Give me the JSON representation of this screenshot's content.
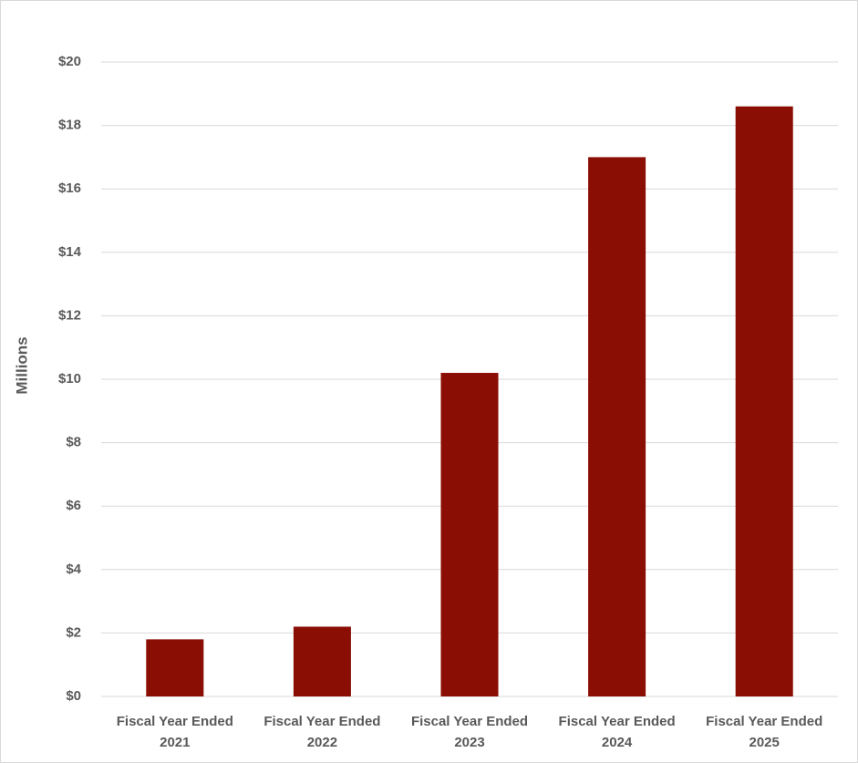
{
  "chart_data": {
    "type": "bar",
    "y_label": "Millions",
    "categories": [
      "Fiscal Year Ended 2021",
      "Fiscal Year Ended 2022",
      "Fiscal Year Ended 2023",
      "Fiscal Year Ended 2024",
      "Fiscal Year Ended 2025"
    ],
    "values": [
      1.8,
      2.2,
      10.2,
      17.0,
      18.6
    ],
    "color": "#8b0e04",
    "ylim": [
      0,
      20
    ],
    "yticks": [
      {
        "value": 0,
        "label": "$0"
      },
      {
        "value": 2,
        "label": "$2"
      },
      {
        "value": 4,
        "label": "$4"
      },
      {
        "value": 6,
        "label": "$6"
      },
      {
        "value": 8,
        "label": "$8"
      },
      {
        "value": 10,
        "label": "$10"
      },
      {
        "value": 12,
        "label": "$12"
      },
      {
        "value": 14,
        "label": "$14"
      },
      {
        "value": 16,
        "label": "$16"
      },
      {
        "value": 18,
        "label": "$18"
      },
      {
        "value": 20,
        "label": "$20"
      }
    ],
    "grid": true
  }
}
